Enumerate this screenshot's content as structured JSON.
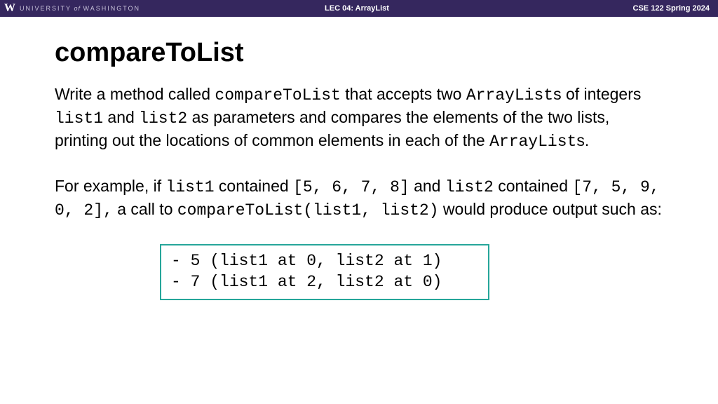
{
  "header": {
    "logo_letter": "W",
    "university_pre": "UNIVERSITY",
    "university_of": " of ",
    "university_post": "WASHINGTON",
    "center": "LEC 04: ArrayList",
    "right": "CSE 122 Spring 2024",
    "bg_color": "#35275e"
  },
  "slide": {
    "title": "compareToList",
    "p1_a": "Write a method called ",
    "p1_code1": "compareToList",
    "p1_b": " that accepts two ",
    "p1_code2": "ArrayList",
    "p1_c": "s of integers ",
    "p1_code3": "list1",
    "p1_d": " and ",
    "p1_code4": "list2",
    "p1_e": " as parameters and compares the elements of the two lists, printing out the locations of common elements in each of the ",
    "p1_code5": "ArrayList",
    "p1_f": "s.",
    "p2_a": "For example, if ",
    "p2_code1": "list1",
    "p2_b": " contained ",
    "p2_code2": "[5, 6, 7, 8]",
    "p2_c": " and ",
    "p2_code3": "list2",
    "p2_d": " contained ",
    "p2_code4": "[7, 5, 9, 0, 2],",
    "p2_e": " a call to ",
    "p2_code5": "compareToList(list1, list2)",
    "p2_f": " would produce output such as:",
    "output_line1": "- 5 (list1 at 0, list2 at 1)",
    "output_line2": "- 7 (list1 at 2, list2 at 0)",
    "output_border_color": "#26a69a"
  }
}
